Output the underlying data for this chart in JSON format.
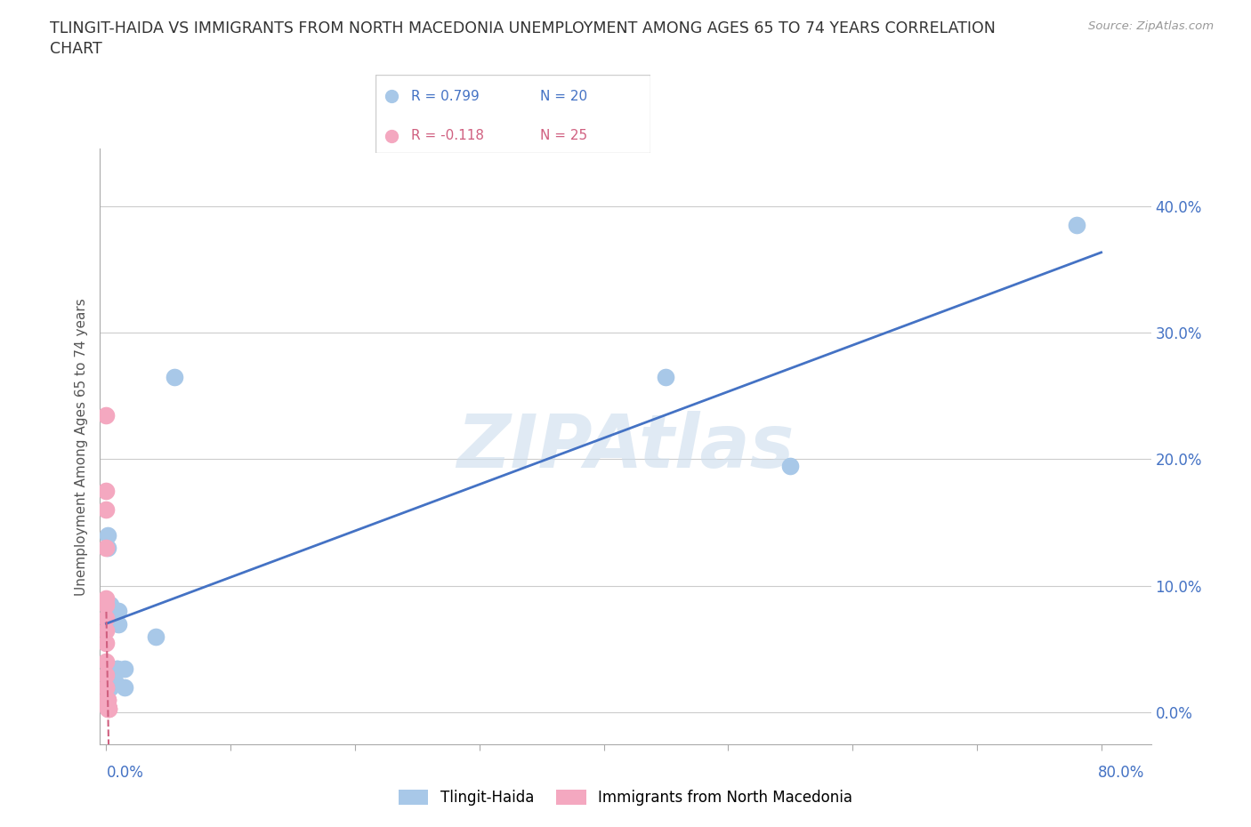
{
  "title_line1": "TLINGIT-HAIDA VS IMMIGRANTS FROM NORTH MACEDONIA UNEMPLOYMENT AMONG AGES 65 TO 74 YEARS CORRELATION",
  "title_line2": "CHART",
  "source": "Source: ZipAtlas.com",
  "ylabel": "Unemployment Among Ages 65 to 74 years",
  "watermark": "ZIPAtlas",
  "legend_r1": "R = 0.799",
  "legend_n1": "N = 20",
  "legend_r2": "R = -0.118",
  "legend_n2": "N = 25",
  "series1_label": "Tlingit-Haida",
  "series2_label": "Immigrants from North Macedonia",
  "series1_color": "#a8c8e8",
  "series2_color": "#f4a8c0",
  "regression1_color": "#4472c4",
  "regression2_color": "#d06080",
  "legend_r1_color": "#4472c4",
  "legend_r2_color": "#d06080",
  "yticks": [
    0.0,
    0.1,
    0.2,
    0.3,
    0.4
  ],
  "ytick_labels": [
    "0.0%",
    "10.0%",
    "20.0%",
    "30.0%",
    "40.0%"
  ],
  "xlim": [
    -0.005,
    0.84
  ],
  "ylim": [
    -0.025,
    0.445
  ],
  "tlingit_x": [
    0.001,
    0.001,
    0.001,
    0.001,
    0.002,
    0.003,
    0.003,
    0.005,
    0.007,
    0.008,
    0.009,
    0.01,
    0.01,
    0.015,
    0.015,
    0.04,
    0.055,
    0.45,
    0.55,
    0.78
  ],
  "tlingit_y": [
    0.14,
    0.13,
    0.085,
    0.085,
    0.085,
    0.085,
    0.02,
    0.025,
    0.025,
    0.035,
    0.035,
    0.08,
    0.07,
    0.02,
    0.035,
    0.06,
    0.265,
    0.265,
    0.195,
    0.385
  ],
  "macedonia_x": [
    0.0,
    0.0,
    0.0,
    0.0,
    0.0,
    0.0,
    0.0,
    0.0,
    0.0,
    0.0,
    0.0,
    0.0,
    0.0,
    0.0,
    0.001,
    0.001,
    0.001,
    0.001,
    0.001,
    0.001,
    0.001,
    0.001,
    0.001,
    0.002,
    0.002
  ],
  "macedonia_y": [
    0.235,
    0.175,
    0.16,
    0.13,
    0.09,
    0.085,
    0.075,
    0.065,
    0.055,
    0.04,
    0.03,
    0.02,
    0.02,
    0.01,
    0.01,
    0.01,
    0.005,
    0.005,
    0.005,
    0.005,
    0.005,
    0.005,
    0.003,
    0.003,
    0.003
  ]
}
